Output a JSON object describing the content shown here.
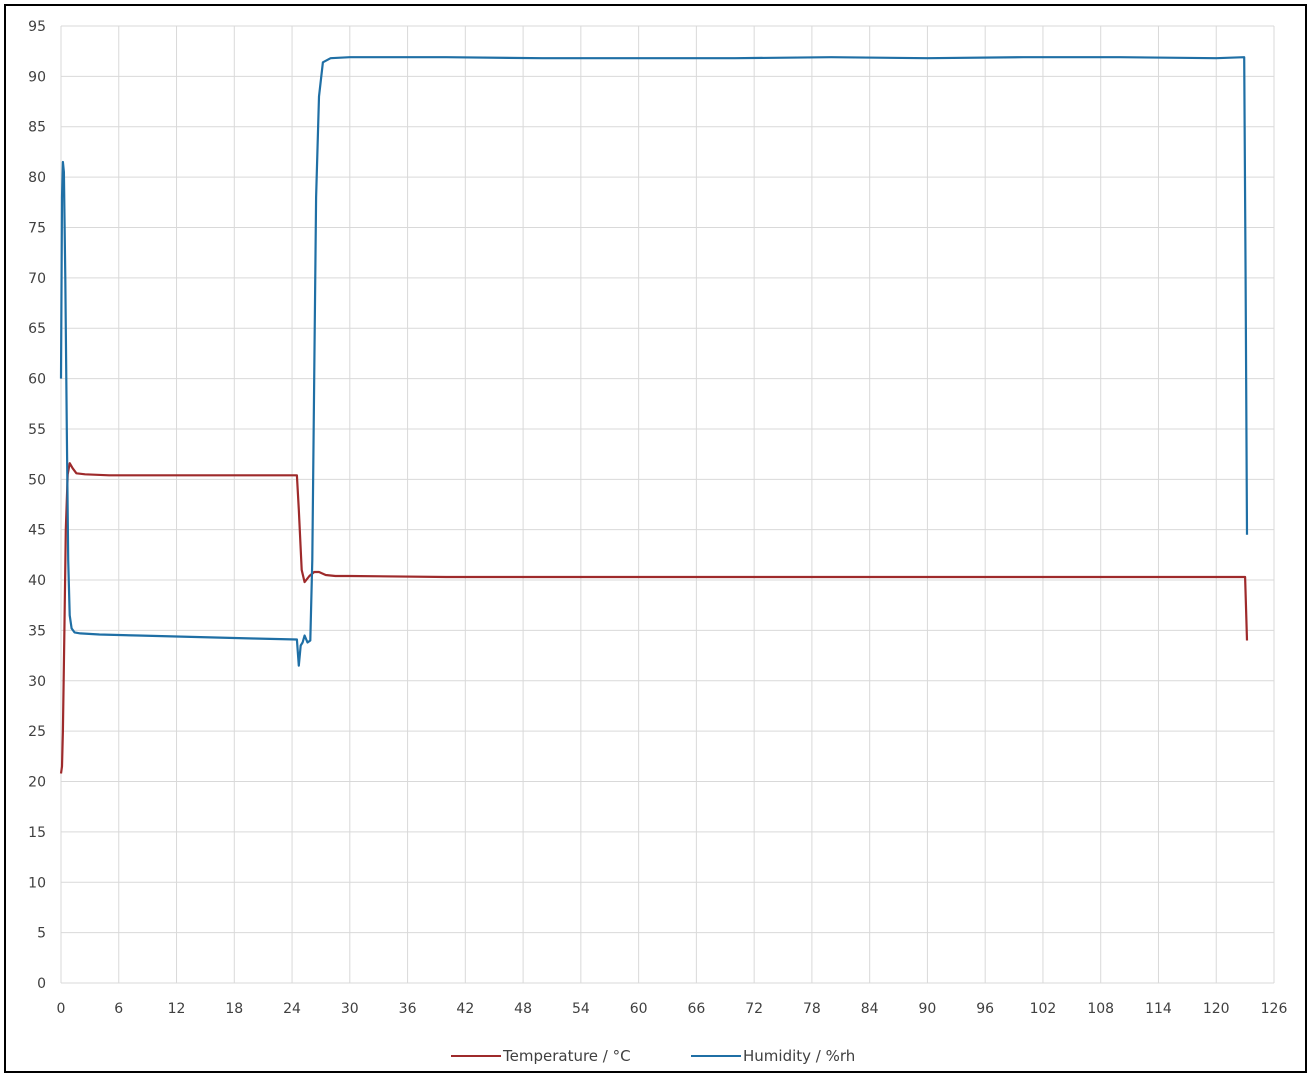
{
  "chart_data": {
    "type": "line",
    "title": "",
    "xlabel": "",
    "ylabel": "",
    "xlim": [
      0,
      126
    ],
    "ylim": [
      0,
      95
    ],
    "xticks": [
      0,
      6,
      12,
      18,
      24,
      30,
      36,
      42,
      48,
      54,
      60,
      66,
      72,
      78,
      84,
      90,
      96,
      102,
      108,
      114,
      120,
      126
    ],
    "yticks": [
      0,
      5,
      10,
      15,
      20,
      25,
      30,
      35,
      40,
      45,
      50,
      55,
      60,
      65,
      70,
      75,
      80,
      85,
      90,
      95
    ],
    "grid": true,
    "legend_position": "bottom",
    "series": [
      {
        "name": "Temperature / °C",
        "color": "#9e2a2b",
        "x": [
          0,
          0.1,
          0.2,
          0.35,
          0.5,
          0.7,
          0.9,
          1.2,
          1.6,
          2.5,
          5,
          10,
          15,
          20,
          24.5,
          24.7,
          25,
          25.3,
          25.8,
          26.3,
          26.8,
          27.5,
          28.5,
          30,
          40,
          60,
          80,
          100,
          120,
          123,
          123.1,
          123.2
        ],
        "y": [
          20.8,
          21.5,
          25,
          35,
          45,
          50.5,
          51.6,
          51.1,
          50.6,
          50.5,
          50.4,
          50.4,
          50.4,
          50.4,
          50.4,
          47,
          41,
          39.8,
          40.4,
          40.8,
          40.8,
          40.5,
          40.4,
          40.4,
          40.3,
          40.3,
          40.3,
          40.3,
          40.3,
          40.3,
          37,
          34
        ]
      },
      {
        "name": "Humidity / %rh",
        "color": "#1f6fa5",
        "x": [
          0,
          0.1,
          0.2,
          0.3,
          0.45,
          0.6,
          0.75,
          0.9,
          1.1,
          1.4,
          2,
          4,
          8,
          12,
          16,
          20,
          24.5,
          24.7,
          24.9,
          25.1,
          25.3,
          25.6,
          25.9,
          26.1,
          26.3,
          26.5,
          26.8,
          27.2,
          28,
          30,
          40,
          50,
          60,
          70,
          80,
          90,
          100,
          110,
          120,
          122.9,
          123.05,
          123.2
        ],
        "y": [
          60,
          78,
          81.5,
          80.5,
          70,
          55,
          42,
          36.5,
          35.2,
          34.8,
          34.7,
          34.6,
          34.5,
          34.4,
          34.3,
          34.2,
          34.1,
          31.5,
          33.5,
          33.8,
          34.5,
          33.8,
          34,
          42,
          60,
          78,
          88,
          91.4,
          91.8,
          91.9,
          91.9,
          91.8,
          91.8,
          91.8,
          91.9,
          91.8,
          91.9,
          91.9,
          91.8,
          91.9,
          70,
          44.5
        ]
      }
    ]
  }
}
